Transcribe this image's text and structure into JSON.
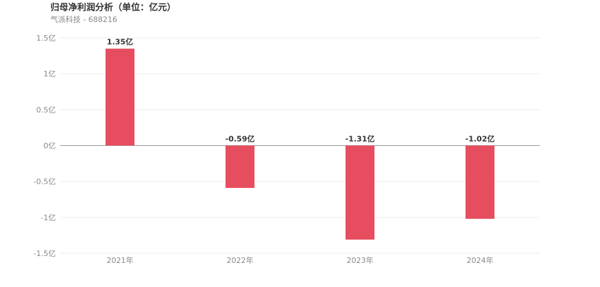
{
  "header": {
    "title": "归母净利润分析（单位：亿元）",
    "subtitle": "气派科技 - 688216"
  },
  "colors": {
    "bar": "#e64e60",
    "grid": "#eeeeee",
    "zero_line": "#999999"
  },
  "chart_data": {
    "type": "bar",
    "title": "归母净利润分析（单位：亿元）",
    "subtitle": "气派科技 - 688216",
    "categories": [
      "2021年",
      "2022年",
      "2023年",
      "2024年"
    ],
    "values": [
      1.35,
      -0.59,
      -1.31,
      -1.02
    ],
    "data_labels": [
      "1.35亿",
      "-0.59亿",
      "-1.31亿",
      "-1.02亿"
    ],
    "ylim": [
      -1.5,
      1.5
    ],
    "yticks": [
      1.5,
      1,
      0.5,
      0,
      -0.5,
      -1,
      -1.5
    ],
    "ytick_labels": [
      "1.5亿",
      "1亿",
      "0.5亿",
      "0亿",
      "-0.5亿",
      "-1亿",
      "-1.5亿"
    ],
    "grid": true,
    "legend": "none"
  }
}
